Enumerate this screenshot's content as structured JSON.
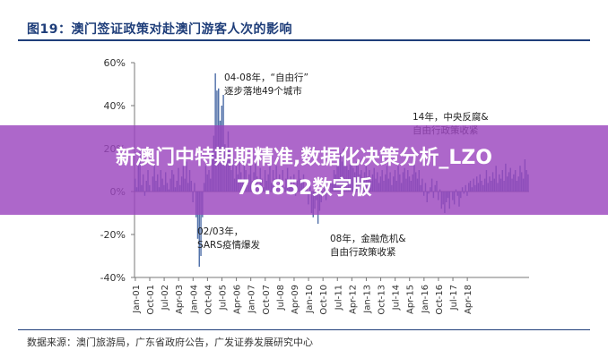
{
  "figure": {
    "title": "图19：澳门签证政策对赴澳门游客人次的影响",
    "source": "数据来源：澳门旅游局，广东省政府公告，广发证券发展研究中心"
  },
  "overlay": {
    "line1": "新澳门中特期期精准,数据化决策分析_LZO",
    "line2": "76.852数字版",
    "color": "#9b46be"
  },
  "chart_data": {
    "type": "bar",
    "ylim": [
      -0.4,
      0.6
    ],
    "yticks": [
      "-40%",
      "-20%",
      "0%",
      "20%",
      "40%",
      "60%"
    ],
    "yticks_values": [
      -0.4,
      -0.2,
      0,
      0.2,
      0.4,
      0.6
    ],
    "xticks": [
      "Jan-01",
      "Oct-01",
      "Jul-02",
      "Apr-03",
      "Jan-04",
      "Oct-04",
      "Jul-05",
      "Apr-06",
      "Jan-07",
      "Oct-07",
      "Jul-08",
      "Apr-09",
      "Jan-10",
      "Oct-10",
      "Jul-11",
      "Apr-12",
      "Jan-13",
      "Oct-13",
      "Jul-14",
      "Apr-15",
      "Jan-16",
      "Oct-16",
      "Jul-17",
      "Apr-18"
    ],
    "start": "2001-01",
    "bar_color": "#4f6fa8",
    "values": [
      0.06,
      0.02,
      0.15,
      0.2,
      0.03,
      0.08,
      -0.02,
      0.05,
      0.1,
      0.03,
      0.0,
      0.07,
      0.12,
      0.05,
      0.08,
      0.02,
      0.1,
      0.06,
      0.03,
      0.09,
      0.04,
      0.01,
      0.06,
      0.1,
      0.08,
      0.02,
      0.05,
      0.11,
      0.03,
      0.07,
      0.12,
      0.06,
      0.14,
      0.04,
      0.1,
      0.05,
      -0.05,
      0.04,
      -0.12,
      -0.22,
      -0.35,
      -0.3,
      -0.12,
      0.04,
      0.12,
      0.08,
      0.1,
      0.06,
      0.2,
      0.26,
      0.55,
      0.47,
      0.48,
      0.33,
      0.4,
      0.45,
      0.22,
      0.18,
      0.28,
      0.2,
      0.1,
      0.15,
      0.06,
      0.12,
      0.08,
      0.18,
      0.09,
      0.05,
      0.14,
      0.1,
      0.03,
      0.08,
      0.12,
      0.05,
      0.09,
      0.16,
      0.07,
      0.03,
      0.11,
      0.06,
      0.02,
      0.1,
      0.05,
      0.08,
      0.15,
      0.04,
      0.1,
      0.06,
      0.12,
      0.03,
      0.08,
      0.05,
      0.1,
      0.02,
      0.06,
      0.11,
      0.04,
      0.07,
      0.03,
      0.08,
      -0.02,
      0.05,
      0.1,
      0.06,
      0.04,
      0.08,
      0.02,
      0.05,
      -0.06,
      0.03,
      -0.1,
      -0.12,
      -0.08,
      -0.04,
      -0.15,
      -0.09,
      -0.05,
      -0.02,
      0.03,
      -0.04,
      0.02,
      0.0,
      0.05,
      0.04,
      0.1,
      0.08,
      0.12,
      0.15,
      0.18,
      0.14,
      0.2,
      0.16,
      0.12,
      0.1,
      0.15,
      0.13,
      0.11,
      0.09,
      0.14,
      0.12,
      0.08,
      0.1,
      0.06,
      0.09,
      0.12,
      0.07,
      0.1,
      0.05,
      0.08,
      0.11,
      0.06,
      0.09,
      0.04,
      0.07,
      0.1,
      0.05,
      0.08,
      0.12,
      0.06,
      0.09,
      0.03,
      0.07,
      0.1,
      0.05,
      0.12,
      0.08,
      0.04,
      0.09,
      0.11,
      0.06,
      0.1,
      0.07,
      0.05,
      0.08,
      0.13,
      0.09,
      0.06,
      0.1,
      0.03,
      0.06,
      -0.02,
      0.04,
      -0.05,
      -0.01,
      0.02,
      0.06,
      -0.03,
      0.03,
      0.05,
      -0.04,
      0.01,
      -0.08,
      -0.06,
      -0.1,
      -0.05,
      -0.03,
      -0.08,
      0.0,
      -0.04,
      -0.06,
      0.01,
      -0.02,
      -0.07,
      -0.03,
      0.02,
      -0.01,
      0.03,
      -0.02,
      0.04,
      0.05,
      0.02,
      0.06,
      0.03,
      0.07,
      0.04,
      0.08,
      0.05,
      0.03,
      0.06,
      0.1,
      0.04,
      0.07,
      0.05,
      0.09,
      0.06,
      0.12,
      0.04,
      0.08,
      0.06,
      0.1,
      0.05,
      0.13,
      0.07,
      0.09,
      0.11,
      0.06,
      0.08,
      0.1,
      0.05,
      0.07,
      0.12,
      0.09,
      0.06,
      0.15,
      0.1,
      0.08
    ]
  },
  "annotations": [
    {
      "id": "ann-2003",
      "lines": [
        "04-08年，“自由行”",
        "逐步落地49个城市"
      ]
    },
    {
      "id": "ann-sars",
      "lines": [
        "02/03年，",
        "SARS疫情爆发"
      ]
    },
    {
      "id": "ann-2008",
      "lines": [
        "08年，金融危机&",
        "自由行政策收紧"
      ]
    },
    {
      "id": "ann-2014",
      "lines": [
        "14年，中央反腐&",
        "自由行政策收紧"
      ]
    }
  ]
}
